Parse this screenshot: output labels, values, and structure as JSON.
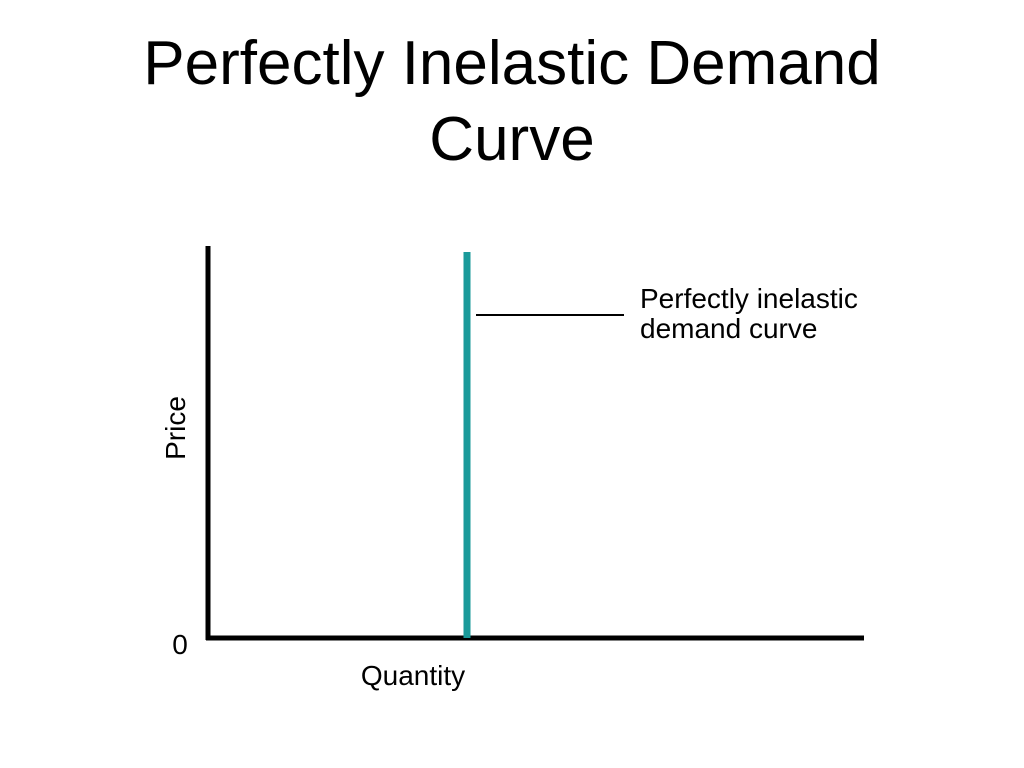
{
  "slide": {
    "title_line1": "Perfectly Inelastic Demand",
    "title_line2": "Curve"
  },
  "colors": {
    "axis": "#000000",
    "demand_curve": "#1a9a9a",
    "text": "#000000"
  },
  "chart_data": {
    "type": "line",
    "title": "Perfectly Inelastic Demand Curve",
    "xlabel": "Quantity",
    "ylabel": "Price",
    "origin_label": "0",
    "series": [
      {
        "name": "Perfectly inelastic demand curve",
        "orientation": "vertical",
        "annotation_line1": "Perfectly inelastic",
        "annotation_line2": "demand curve"
      }
    ],
    "grid": false,
    "legend": "annotation at top-right of curve"
  }
}
